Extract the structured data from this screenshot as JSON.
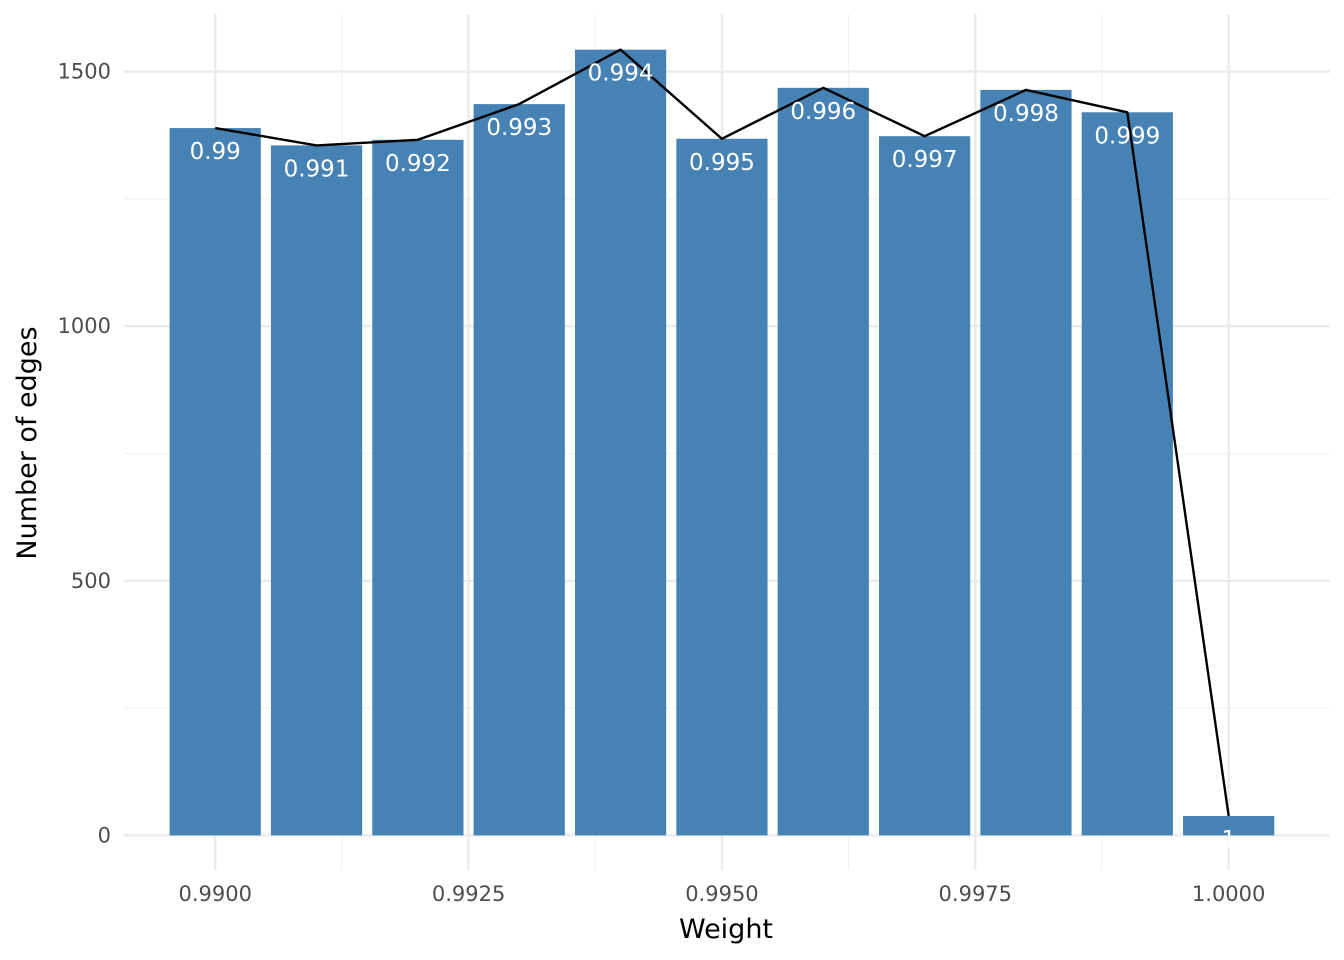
{
  "chart_data": {
    "type": "bar",
    "xlabel": "Weight",
    "ylabel": "Number of edges",
    "xlim": [
      0.9891,
      1.001
    ],
    "ylim": [
      -68,
      1613
    ],
    "x_ticks": [
      0.99,
      0.9925,
      0.995,
      0.9975,
      1.0
    ],
    "x_tick_labels": [
      "0.9900",
      "0.9925",
      "0.9950",
      "0.9975",
      "1.0000"
    ],
    "y_ticks": [
      0,
      500,
      1000,
      1500
    ],
    "y_tick_labels": [
      "0",
      "500",
      "1000",
      "1500"
    ],
    "grid": true,
    "legend": "none",
    "bar_width": 0.0009,
    "x": [
      0.99,
      0.991,
      0.992,
      0.993,
      0.994,
      0.995,
      0.996,
      0.997,
      0.998,
      0.999,
      1.0
    ],
    "values": [
      1389,
      1355,
      1366,
      1436,
      1543,
      1368,
      1468,
      1373,
      1464,
      1420,
      38
    ],
    "data_labels": [
      "0.99",
      "0.991",
      "0.992",
      "0.993",
      "0.994",
      "0.995",
      "0.996",
      "0.997",
      "0.998",
      "0.999",
      "1"
    ],
    "line_overlay": true,
    "colors": {
      "bar": "#4682B4",
      "line": "#000000",
      "bar_label": "#ffffff",
      "grid_major": "#ebebeb",
      "grid_minor": "#f2f2f2",
      "tick_label": "#4d4d4d",
      "axis_title": "#000000"
    }
  }
}
